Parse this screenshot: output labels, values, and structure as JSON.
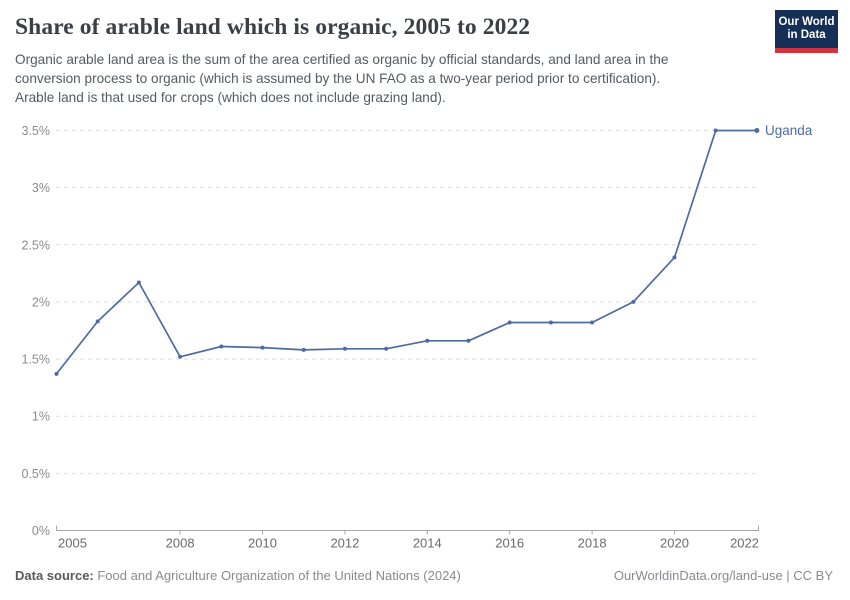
{
  "header": {
    "title": "Share of arable land which is organic, 2005 to 2022",
    "subtitle_lines": [
      "Organic arable land area is the sum of the area certified as organic by official standards, and land area in the",
      "conversion process to organic (which is assumed by the UN FAO as a two-year period prior to certification).",
      "Arable land is that used for crops (which does not include grazing land)."
    ],
    "logo": {
      "line1": "Our World",
      "line2": "in Data"
    }
  },
  "footer": {
    "datasource_label": "Data source:",
    "datasource_text": " Food and Agriculture Organization of the United Nations (2024)",
    "link_text": "OurWorldinData.org/land-use | CC BY"
  },
  "colors": {
    "line": "#4d6ba3",
    "series_label": "#4d6ba3",
    "grid": "#dcdcdc",
    "axis": "#a8a8a8",
    "y_tick_label": "#8c8c8c",
    "x_tick_label": "#6b6b6b",
    "logo_navy": "#152f56",
    "logo_red": "#d0343f"
  },
  "chart_data": {
    "type": "line",
    "title": "Share of arable land which is organic, 2005 to 2022",
    "entity": "Uganda",
    "unit": "%",
    "x": [
      2005,
      2006,
      2007,
      2008,
      2009,
      2010,
      2011,
      2012,
      2013,
      2014,
      2015,
      2016,
      2017,
      2018,
      2019,
      2020,
      2021,
      2022
    ],
    "series": [
      {
        "name": "Uganda",
        "values": [
          1.37,
          1.83,
          2.17,
          1.52,
          1.61,
          1.6,
          1.58,
          1.59,
          1.59,
          1.66,
          1.66,
          1.82,
          1.82,
          1.82,
          2.0,
          2.39,
          3.5,
          3.5
        ]
      }
    ],
    "xlabel": "",
    "ylabel": "",
    "xlim": [
      2005,
      2022
    ],
    "ylim": [
      0,
      3.5
    ],
    "yticks": [
      0,
      0.5,
      1,
      1.5,
      2,
      2.5,
      3,
      3.5
    ],
    "ytick_labels": [
      "0%",
      "0.5%",
      "1%",
      "1.5%",
      "2%",
      "2.5%",
      "3%",
      "3.5%"
    ],
    "xticks": [
      2005,
      2008,
      2010,
      2012,
      2014,
      2016,
      2018,
      2020,
      2022
    ],
    "grid": "horizontal-dashed",
    "legend": "end-of-line-label"
  }
}
